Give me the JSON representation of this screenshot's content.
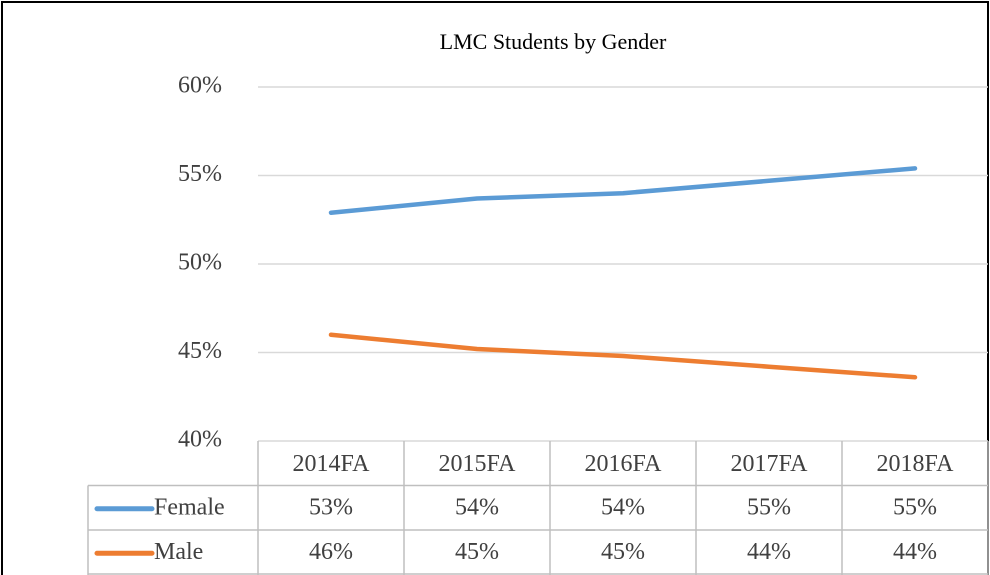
{
  "chart_data": {
    "type": "line",
    "title": "LMC Students by Gender",
    "categories": [
      "2014FA",
      "2015FA",
      "2016FA",
      "2017FA",
      "2018FA"
    ],
    "series": [
      {
        "name": "Female",
        "color": "#5b9bd5",
        "values": [
          52.9,
          53.7,
          54.0,
          54.7,
          55.4
        ],
        "value_labels": [
          "53%",
          "54%",
          "54%",
          "55%",
          "55%"
        ]
      },
      {
        "name": "Male",
        "color": "#ed7d31",
        "values": [
          46.0,
          45.2,
          44.8,
          44.2,
          43.6
        ],
        "value_labels": [
          "46%",
          "45%",
          "45%",
          "44%",
          "44%"
        ]
      }
    ],
    "ylim": [
      40,
      60
    ],
    "yticks": [
      {
        "value": 40,
        "label": "40%"
      },
      {
        "value": 45,
        "label": "45%"
      },
      {
        "value": 50,
        "label": "50%"
      },
      {
        "value": 55,
        "label": "55%"
      },
      {
        "value": 60,
        "label": "60%"
      }
    ],
    "grid": true,
    "legend": "table"
  }
}
